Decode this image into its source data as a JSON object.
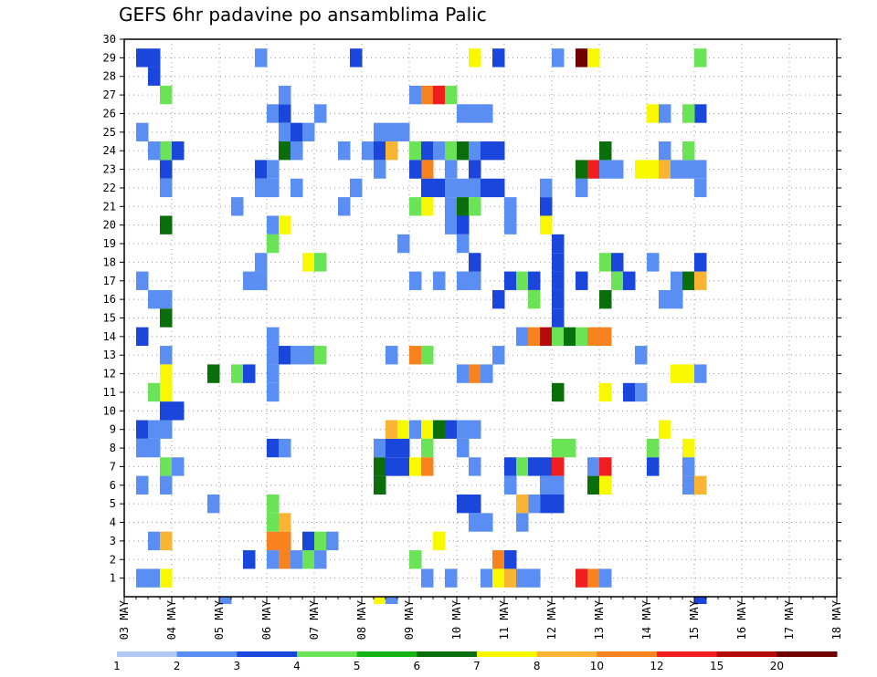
{
  "chart_data": {
    "type": "heatmap",
    "title": "GEFS 6hr padavine po ansamblima Palic",
    "x_tick_labels": [
      "03 MAY",
      "04 MAY",
      "05 MAY",
      "06 MAY",
      "07 MAY",
      "08 MAY",
      "09 MAY",
      "10 MAY",
      "11 MAY",
      "12 MAY",
      "13 MAY",
      "14 MAY",
      "15 MAY",
      "16 MAY",
      "17 MAY",
      "18 MAY"
    ],
    "y_range": [
      0,
      30
    ],
    "y_tick_labels": [
      "1",
      "2",
      "3",
      "4",
      "5",
      "6",
      "7",
      "8",
      "9",
      "10",
      "11",
      "12",
      "13",
      "14",
      "15",
      "16",
      "17",
      "18",
      "19",
      "20",
      "21",
      "22",
      "23",
      "24",
      "25",
      "26",
      "27",
      "28",
      "29",
      "30"
    ],
    "grid": true,
    "x_unit": "6-hour step from 03 MAY 00Z (0-60)",
    "legend": {
      "position": "bottom",
      "thresholds": [
        "1",
        "2",
        "3",
        "4",
        "5",
        "6",
        "7",
        "8",
        "10",
        "12",
        "15",
        "20"
      ],
      "colors": [
        "#b4c8f4",
        "#5a8ef2",
        "#1a46dc",
        "#6ae456",
        "#14b414",
        "#0a6e0a",
        "#f8f800",
        "#f8b432",
        "#f8821e",
        "#f01e1e",
        "#b40a0a",
        "#6e0000"
      ]
    },
    "cells": [
      [
        1,
        29,
        2
      ],
      [
        2,
        29,
        2
      ],
      [
        2,
        28,
        2
      ],
      [
        3,
        27,
        3
      ],
      [
        3,
        23,
        2
      ],
      [
        3,
        24,
        3
      ],
      [
        4,
        24,
        2
      ],
      [
        2,
        24,
        1
      ],
      [
        1,
        25,
        1
      ],
      [
        1,
        17,
        1
      ],
      [
        2,
        16,
        1
      ],
      [
        3,
        16,
        1
      ],
      [
        3,
        15,
        5
      ],
      [
        1,
        14,
        2
      ],
      [
        3,
        13,
        1
      ],
      [
        2,
        11,
        3
      ],
      [
        3,
        11,
        6
      ],
      [
        3,
        12,
        6
      ],
      [
        3,
        10,
        2
      ],
      [
        4,
        10,
        2
      ],
      [
        1,
        9,
        2
      ],
      [
        2,
        9,
        1
      ],
      [
        3,
        9,
        1
      ],
      [
        1,
        8,
        1
      ],
      [
        2,
        8,
        1
      ],
      [
        3,
        7,
        3
      ],
      [
        4,
        7,
        1
      ],
      [
        1,
        6,
        1
      ],
      [
        3,
        6,
        1
      ],
      [
        2,
        3,
        1
      ],
      [
        3,
        3,
        7
      ],
      [
        1,
        1,
        1
      ],
      [
        2,
        1,
        1
      ],
      [
        3,
        1,
        6
      ],
      [
        3,
        22,
        1
      ],
      [
        3,
        20,
        5
      ],
      [
        7,
        5,
        1
      ],
      [
        7,
        12,
        5
      ],
      [
        8,
        -1,
        1
      ],
      [
        9,
        21,
        1
      ],
      [
        9,
        12,
        3
      ],
      [
        10,
        12,
        2
      ],
      [
        10,
        17,
        1
      ],
      [
        10,
        2,
        2
      ],
      [
        11,
        29,
        1
      ],
      [
        11,
        17,
        1
      ],
      [
        11,
        18,
        1
      ],
      [
        11,
        23,
        2
      ],
      [
        11,
        22,
        1
      ],
      [
        12,
        22,
        1
      ],
      [
        12,
        23,
        1
      ],
      [
        12,
        26,
        1
      ],
      [
        13,
        26,
        2
      ],
      [
        13,
        27,
        1
      ],
      [
        13,
        25,
        1
      ],
      [
        13,
        24,
        5
      ],
      [
        12,
        20,
        1
      ],
      [
        13,
        20,
        6
      ],
      [
        12,
        19,
        3
      ],
      [
        12,
        14,
        1
      ],
      [
        12,
        13,
        1
      ],
      [
        13,
        13,
        2
      ],
      [
        12,
        12,
        1
      ],
      [
        12,
        11,
        1
      ],
      [
        12,
        8,
        2
      ],
      [
        13,
        8,
        1
      ],
      [
        12,
        5,
        3
      ],
      [
        12,
        4,
        3
      ],
      [
        13,
        4,
        7
      ],
      [
        12,
        3,
        8
      ],
      [
        13,
        3,
        8
      ],
      [
        12,
        2,
        1
      ],
      [
        13,
        2,
        8
      ],
      [
        14,
        2,
        1
      ],
      [
        15,
        2,
        3
      ],
      [
        16,
        2,
        1
      ],
      [
        15,
        3,
        2
      ],
      [
        16,
        3,
        3
      ],
      [
        17,
        3,
        1
      ],
      [
        14,
        22,
        1
      ],
      [
        14,
        25,
        2
      ],
      [
        15,
        25,
        1
      ],
      [
        14,
        24,
        1
      ],
      [
        15,
        18,
        6
      ],
      [
        16,
        18,
        3
      ],
      [
        14,
        13,
        1
      ],
      [
        15,
        13,
        1
      ],
      [
        16,
        13,
        3
      ],
      [
        16,
        26,
        1
      ],
      [
        18,
        24,
        1
      ],
      [
        18,
        21,
        1
      ],
      [
        19,
        22,
        1
      ],
      [
        19,
        29,
        2
      ],
      [
        20,
        24,
        1
      ],
      [
        21,
        24,
        2
      ],
      [
        21,
        25,
        1
      ],
      [
        22,
        25,
        1
      ],
      [
        23,
        25,
        1
      ],
      [
        22,
        24,
        7
      ],
      [
        21,
        23,
        1
      ],
      [
        21,
        8,
        1
      ],
      [
        22,
        8,
        2
      ],
      [
        22,
        9,
        7
      ],
      [
        23,
        9,
        6
      ],
      [
        23,
        8,
        2
      ],
      [
        21,
        7,
        5
      ],
      [
        22,
        7,
        2
      ],
      [
        23,
        7,
        2
      ],
      [
        21,
        6,
        5
      ],
      [
        21,
        -1,
        6
      ],
      [
        22,
        -1,
        1
      ],
      [
        22,
        13,
        1
      ],
      [
        23,
        19,
        1
      ],
      [
        24,
        13,
        8
      ],
      [
        25,
        13,
        3
      ],
      [
        24,
        9,
        1
      ],
      [
        25,
        9,
        6
      ],
      [
        26,
        9,
        5
      ],
      [
        25,
        8,
        3
      ],
      [
        24,
        7,
        6
      ],
      [
        25,
        7,
        8
      ],
      [
        24,
        2,
        3
      ],
      [
        24,
        24,
        3
      ],
      [
        25,
        24,
        2
      ],
      [
        25,
        23,
        8
      ],
      [
        24,
        23,
        2
      ],
      [
        25,
        22,
        2
      ],
      [
        24,
        21,
        3
      ],
      [
        25,
        21,
        6
      ],
      [
        24,
        27,
        1
      ],
      [
        25,
        27,
        8
      ],
      [
        26,
        27,
        9
      ],
      [
        27,
        27,
        3
      ],
      [
        26,
        24,
        1
      ],
      [
        27,
        24,
        3
      ],
      [
        28,
        24,
        5
      ],
      [
        29,
        24,
        1
      ],
      [
        27,
        23,
        1
      ],
      [
        29,
        23,
        2
      ],
      [
        26,
        22,
        2
      ],
      [
        27,
        22,
        1
      ],
      [
        28,
        22,
        1
      ],
      [
        29,
        22,
        1
      ],
      [
        30,
        22,
        2
      ],
      [
        31,
        22,
        2
      ],
      [
        30,
        24,
        2
      ],
      [
        31,
        24,
        2
      ],
      [
        27,
        21,
        1
      ],
      [
        28,
        21,
        5
      ],
      [
        29,
        21,
        3
      ],
      [
        27,
        20,
        1
      ],
      [
        28,
        20,
        2
      ],
      [
        28,
        19,
        1
      ],
      [
        28,
        12,
        1
      ],
      [
        29,
        12,
        8
      ],
      [
        30,
        12,
        1
      ],
      [
        27,
        9,
        2
      ],
      [
        28,
        9,
        1
      ],
      [
        29,
        9,
        1
      ],
      [
        26,
        17,
        1
      ],
      [
        28,
        17,
        1
      ],
      [
        29,
        17,
        1
      ],
      [
        29,
        18,
        2
      ],
      [
        28,
        17,
        1
      ],
      [
        25,
        1,
        1
      ],
      [
        27,
        1,
        1
      ],
      [
        26,
        3,
        6
      ],
      [
        24,
        17,
        1
      ],
      [
        29,
        26,
        1
      ],
      [
        28,
        26,
        1
      ],
      [
        30,
        26,
        1
      ],
      [
        28,
        5,
        2
      ],
      [
        29,
        5,
        2
      ],
      [
        29,
        4,
        1
      ],
      [
        29,
        29,
        6
      ],
      [
        31,
        29,
        2
      ],
      [
        30,
        4,
        1
      ],
      [
        29,
        7,
        1
      ],
      [
        28,
        8,
        1
      ],
      [
        30,
        1,
        1
      ],
      [
        31,
        16,
        2
      ],
      [
        31,
        2,
        8
      ],
      [
        32,
        2,
        2
      ],
      [
        31,
        1,
        6
      ],
      [
        32,
        1,
        7
      ],
      [
        32,
        7,
        2
      ],
      [
        32,
        17,
        2
      ],
      [
        33,
        17,
        3
      ],
      [
        34,
        17,
        2
      ],
      [
        33,
        14,
        1
      ],
      [
        34,
        14,
        8
      ],
      [
        35,
        14,
        10
      ],
      [
        36,
        14,
        3
      ],
      [
        37,
        14,
        5
      ],
      [
        32,
        6,
        1
      ],
      [
        33,
        7,
        3
      ],
      [
        34,
        7,
        2
      ],
      [
        35,
        7,
        2
      ],
      [
        36,
        7,
        9
      ],
      [
        35,
        6,
        1
      ],
      [
        36,
        6,
        1
      ],
      [
        35,
        5,
        2
      ],
      [
        36,
        5,
        2
      ],
      [
        34,
        5,
        1
      ],
      [
        33,
        5,
        7
      ],
      [
        33,
        4,
        1
      ],
      [
        32,
        20,
        1
      ],
      [
        34,
        16,
        3
      ],
      [
        35,
        21,
        2
      ],
      [
        35,
        20,
        6
      ],
      [
        36,
        19,
        2
      ],
      [
        36,
        18,
        2
      ],
      [
        36,
        17,
        2
      ],
      [
        36,
        16,
        2
      ],
      [
        36,
        15,
        2
      ],
      [
        32,
        21,
        1
      ],
      [
        35,
        22,
        1
      ],
      [
        33,
        1,
        1
      ],
      [
        34,
        1,
        1
      ],
      [
        31,
        13,
        1
      ],
      [
        36,
        11,
        5
      ],
      [
        36,
        8,
        3
      ],
      [
        37,
        8,
        3
      ],
      [
        36,
        29,
        1
      ],
      [
        38,
        29,
        11
      ],
      [
        39,
        29,
        6
      ],
      [
        38,
        22,
        1
      ],
      [
        38,
        23,
        5
      ],
      [
        39,
        23,
        9
      ],
      [
        40,
        23,
        1
      ],
      [
        38,
        17,
        2
      ],
      [
        38,
        14,
        3
      ],
      [
        39,
        14,
        8
      ],
      [
        40,
        14,
        8
      ],
      [
        38,
        1,
        9
      ],
      [
        39,
        1,
        8
      ],
      [
        40,
        1,
        1
      ],
      [
        39,
        7,
        1
      ],
      [
        40,
        7,
        9
      ],
      [
        39,
        6,
        5
      ],
      [
        40,
        6,
        6
      ],
      [
        40,
        16,
        5
      ],
      [
        40,
        18,
        3
      ],
      [
        41,
        18,
        2
      ],
      [
        41,
        17,
        3
      ],
      [
        42,
        17,
        2
      ],
      [
        41,
        23,
        1
      ],
      [
        40,
        24,
        5
      ],
      [
        42,
        11,
        2
      ],
      [
        43,
        11,
        1
      ],
      [
        40,
        11,
        6
      ],
      [
        43,
        13,
        1
      ],
      [
        44,
        26,
        6
      ],
      [
        45,
        26,
        1
      ],
      [
        45,
        24,
        1
      ],
      [
        44,
        23,
        6
      ],
      [
        45,
        23,
        7
      ],
      [
        46,
        23,
        1
      ],
      [
        47,
        23,
        1
      ],
      [
        48,
        23,
        1
      ],
      [
        43,
        23,
        6
      ],
      [
        44,
        8,
        3
      ],
      [
        45,
        9,
        6
      ],
      [
        44,
        7,
        2
      ],
      [
        47,
        8,
        6
      ],
      [
        47,
        7,
        1
      ],
      [
        47,
        12,
        6
      ],
      [
        46,
        12,
        6
      ],
      [
        48,
        12,
        1
      ],
      [
        46,
        17,
        1
      ],
      [
        47,
        17,
        5
      ],
      [
        48,
        17,
        7
      ],
      [
        47,
        6,
        1
      ],
      [
        48,
        6,
        7
      ],
      [
        48,
        18,
        2
      ],
      [
        48,
        26,
        2
      ],
      [
        47,
        26,
        3
      ],
      [
        48,
        29,
        3
      ],
      [
        47,
        24,
        3
      ],
      [
        48,
        22,
        1
      ],
      [
        44,
        18,
        1
      ],
      [
        48,
        -1,
        2
      ],
      [
        45,
        16,
        1
      ],
      [
        46,
        16,
        1
      ]
    ]
  }
}
